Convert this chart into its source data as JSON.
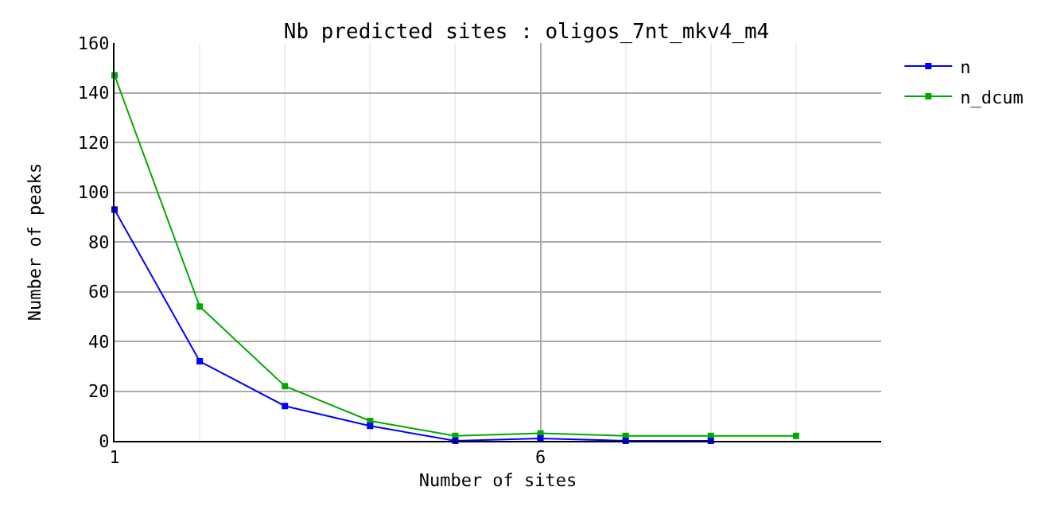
{
  "chart_data": {
    "type": "line",
    "title": "Nb predicted sites : oligos_7nt_mkv4_m4",
    "xlabel": "Number of sites",
    "ylabel": "Number of peaks",
    "x": [
      1,
      2,
      3,
      4,
      5,
      6,
      7,
      8,
      9
    ],
    "series": [
      {
        "name": "n",
        "color": "#0000ff",
        "x": [
          1,
          2,
          3,
          4,
          5,
          6,
          7,
          8
        ],
        "values": [
          93,
          32,
          14,
          6,
          0,
          1,
          0,
          0
        ]
      },
      {
        "name": "n_dcum",
        "color": "#00aa00",
        "values": [
          147,
          54,
          22,
          8,
          2,
          3,
          2,
          2,
          2
        ]
      }
    ],
    "xlim": [
      1,
      10
    ],
    "xticks": [
      1,
      6
    ],
    "ylim": [
      0,
      160
    ],
    "yticks": [
      0,
      20,
      40,
      60,
      80,
      100,
      120,
      140,
      160
    ],
    "grid": true,
    "legend": "top right",
    "marker": "square",
    "line_style": "solid"
  }
}
